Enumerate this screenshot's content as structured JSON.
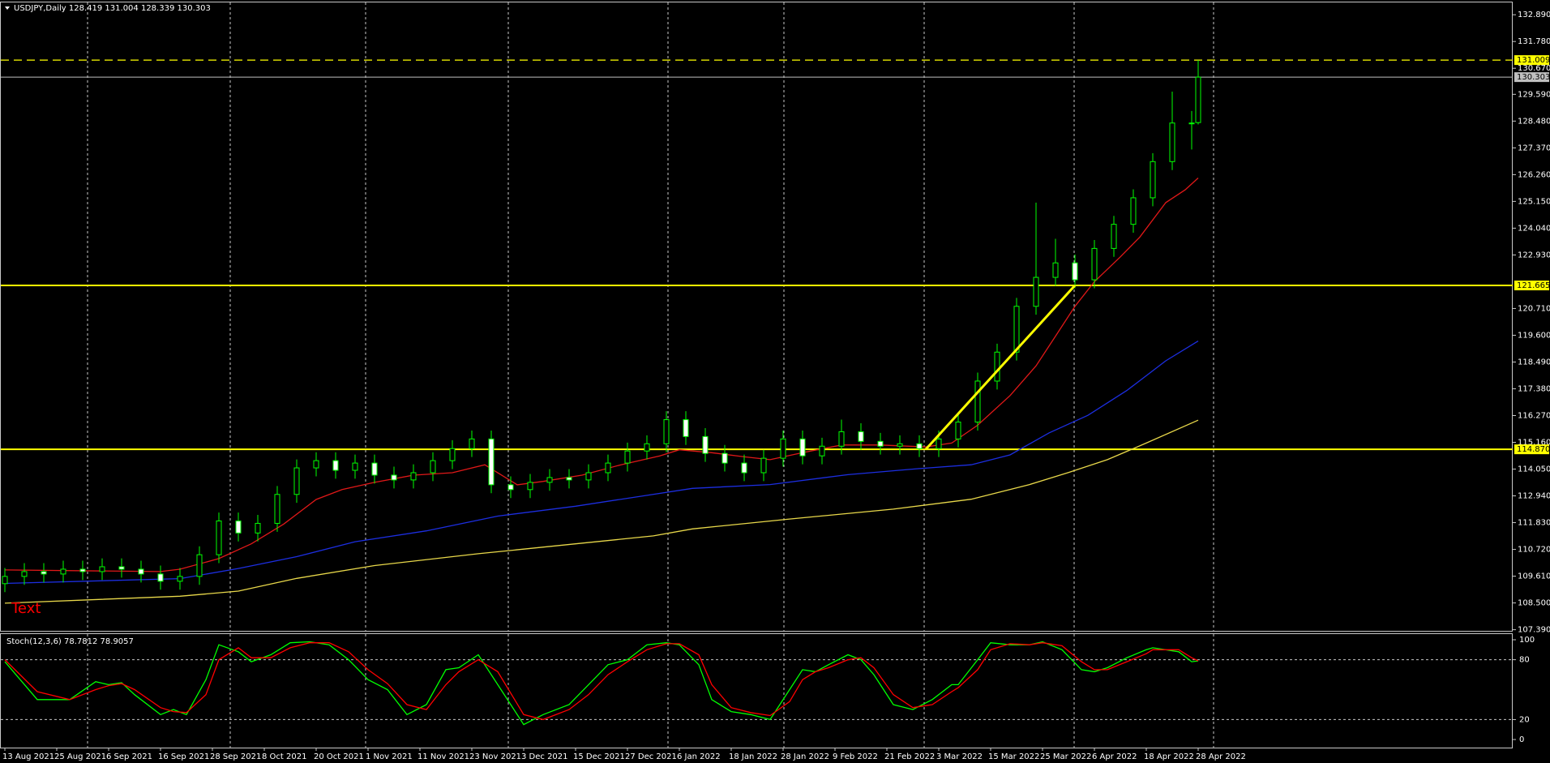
{
  "chart_data": [
    {
      "type": "candlestick",
      "title": "USDJPY,Daily  128.419 131.004 128.339 130.303",
      "annotation": "Text",
      "ylim": [
        107.31,
        133.4
      ],
      "yticks": [
        {
          "value": 132.89,
          "label": "132.890"
        },
        {
          "value": 131.78,
          "label": "131.780"
        },
        {
          "value": 130.67,
          "label": "130.670"
        },
        {
          "value": 129.59,
          "label": "129.590"
        },
        {
          "value": 128.48,
          "label": "128.480"
        },
        {
          "value": 127.37,
          "label": "127.370"
        },
        {
          "value": 126.26,
          "label": "126.260"
        },
        {
          "value": 125.15,
          "label": "125.150"
        },
        {
          "value": 124.04,
          "label": "124.040"
        },
        {
          "value": 122.93,
          "label": "122.930"
        },
        {
          "value": 120.71,
          "label": "120.710"
        },
        {
          "value": 119.6,
          "label": "119.600"
        },
        {
          "value": 118.49,
          "label": "118.490"
        },
        {
          "value": 117.38,
          "label": "117.380"
        },
        {
          "value": 116.27,
          "label": "116.270"
        },
        {
          "value": 115.16,
          "label": "115.160"
        },
        {
          "value": 114.05,
          "label": "114.050"
        },
        {
          "value": 112.94,
          "label": "112.940"
        },
        {
          "value": 111.83,
          "label": "111.830"
        },
        {
          "value": 110.72,
          "label": "110.720"
        },
        {
          "value": 109.61,
          "label": "109.610"
        },
        {
          "value": 108.5,
          "label": "108.500"
        },
        {
          "value": 107.39,
          "label": "107.390"
        }
      ],
      "x": [
        0,
        3,
        6,
        9,
        12,
        15,
        18,
        21,
        24,
        27,
        30,
        33,
        36,
        39,
        42,
        45,
        48,
        51,
        54,
        57,
        60,
        63,
        66,
        69,
        72,
        75,
        78,
        81,
        84,
        87,
        90,
        93,
        96,
        99,
        102,
        105,
        108,
        111,
        114,
        117,
        120,
        123,
        126,
        129,
        132,
        135,
        138,
        141,
        144,
        147,
        150,
        153,
        156,
        159,
        162,
        165,
        168,
        171,
        174,
        177,
        180,
        183,
        184
      ],
      "open": [
        109.3,
        109.6,
        109.8,
        109.7,
        109.9,
        109.8,
        110.0,
        109.9,
        109.7,
        109.4,
        109.6,
        110.5,
        111.9,
        111.4,
        111.8,
        113.0,
        114.1,
        114.4,
        114.0,
        114.3,
        113.8,
        113.6,
        113.9,
        114.4,
        114.9,
        115.3,
        113.4,
        113.2,
        113.5,
        113.7,
        113.6,
        113.9,
        114.3,
        114.8,
        115.1,
        116.1,
        115.4,
        114.7,
        114.3,
        113.9,
        114.5,
        115.3,
        114.6,
        115.0,
        115.6,
        115.2,
        115.0,
        115.1,
        114.9,
        115.3,
        116.0,
        117.7,
        118.9,
        120.8,
        122.0,
        122.6,
        121.9,
        123.2,
        124.2,
        125.3,
        126.8,
        128.4,
        128.419
      ],
      "high": [
        109.95,
        110.15,
        110.15,
        110.25,
        110.25,
        110.35,
        110.35,
        110.25,
        110.05,
        109.95,
        110.85,
        112.25,
        112.25,
        112.15,
        113.35,
        114.45,
        114.75,
        114.75,
        114.65,
        114.65,
        114.15,
        114.25,
        114.75,
        115.25,
        115.65,
        115.65,
        113.75,
        113.85,
        114.05,
        114.05,
        114.25,
        114.65,
        115.15,
        115.45,
        116.45,
        116.45,
        115.75,
        115.05,
        114.65,
        114.85,
        115.65,
        115.65,
        115.35,
        116.1,
        115.95,
        115.55,
        115.45,
        115.45,
        115.65,
        116.35,
        118.05,
        119.25,
        121.15,
        125.1,
        123.6,
        122.95,
        123.55,
        124.55,
        125.65,
        127.15,
        129.7,
        128.9,
        131.004
      ],
      "low": [
        108.95,
        109.25,
        109.35,
        109.35,
        109.45,
        109.45,
        109.55,
        109.35,
        109.05,
        109.05,
        109.25,
        110.15,
        111.05,
        111.05,
        111.45,
        112.65,
        113.75,
        113.65,
        113.65,
        113.45,
        113.25,
        113.25,
        113.55,
        114.05,
        114.55,
        113.05,
        112.85,
        112.85,
        113.15,
        113.25,
        113.25,
        113.55,
        113.95,
        114.45,
        114.75,
        115.05,
        114.35,
        113.95,
        113.55,
        113.55,
        114.15,
        114.25,
        114.25,
        114.65,
        114.85,
        114.65,
        114.65,
        114.55,
        114.55,
        114.95,
        115.65,
        117.35,
        118.55,
        120.45,
        121.65,
        121.55,
        121.55,
        122.85,
        123.85,
        124.95,
        126.45,
        127.3,
        128.339
      ],
      "close": [
        109.6,
        109.8,
        109.7,
        109.9,
        109.8,
        110.0,
        109.9,
        109.7,
        109.4,
        109.6,
        110.5,
        111.9,
        111.4,
        111.8,
        113.0,
        114.1,
        114.4,
        114.0,
        114.3,
        113.8,
        113.6,
        113.9,
        114.4,
        114.9,
        115.3,
        113.4,
        113.2,
        113.5,
        113.7,
        113.6,
        113.9,
        114.3,
        114.8,
        115.1,
        116.1,
        115.4,
        114.7,
        114.3,
        113.9,
        114.5,
        115.3,
        114.6,
        115.0,
        115.6,
        115.2,
        115.0,
        115.1,
        114.9,
        115.3,
        116.0,
        117.7,
        118.9,
        120.8,
        122.0,
        122.6,
        121.9,
        123.2,
        124.2,
        125.3,
        126.8,
        128.4,
        128.4,
        130.303
      ],
      "up_color": "#000000",
      "down_color": "#ffffff",
      "wick_color": "#00ff00",
      "series": [
        {
          "color": "#e01818",
          "x": [
            0,
            24,
            27,
            33,
            38,
            43,
            48,
            52,
            57,
            63,
            69,
            74,
            79,
            83,
            89,
            95,
            101,
            104,
            109,
            114,
            118,
            123,
            129,
            135,
            142,
            146,
            150,
            155,
            159,
            162,
            165,
            168,
            172,
            175,
            179,
            182,
            184
          ],
          "values": [
            109.87,
            109.8,
            109.9,
            110.34,
            110.95,
            111.77,
            112.79,
            113.2,
            113.5,
            113.8,
            113.9,
            114.23,
            113.4,
            113.54,
            113.8,
            114.23,
            114.6,
            114.85,
            114.73,
            114.56,
            114.44,
            114.73,
            115.05,
            115.05,
            114.97,
            115.13,
            115.87,
            117.1,
            118.33,
            119.56,
            120.8,
            121.82,
            122.85,
            123.67,
            125.1,
            125.63,
            126.12
          ]
        },
        {
          "color": "#1c2ee0",
          "x": [
            0,
            27,
            36,
            45,
            54,
            65,
            76,
            88,
            98,
            106,
            118,
            130,
            141,
            149,
            155,
            161,
            167,
            173,
            179,
            184
          ],
          "values": [
            109.31,
            109.51,
            109.93,
            110.42,
            111.04,
            111.49,
            112.1,
            112.51,
            112.92,
            113.25,
            113.41,
            113.82,
            114.07,
            114.23,
            114.64,
            115.55,
            116.28,
            117.31,
            118.54,
            119.36
          ]
        },
        {
          "color": "#e8d84a",
          "x": [
            0,
            27,
            36,
            45,
            57,
            73,
            88,
            100,
            106,
            121,
            137,
            149,
            158,
            164,
            170,
            176,
            184
          ],
          "values": [
            108.49,
            108.78,
            108.99,
            109.52,
            110.05,
            110.54,
            110.95,
            111.28,
            111.57,
            111.98,
            112.39,
            112.8,
            113.41,
            113.91,
            114.44,
            115.13,
            116.08
          ]
        }
      ],
      "trendline": {
        "color": "#ffff00",
        "x": [
          142,
          165
        ],
        "values": [
          114.87,
          121.665
        ]
      },
      "levels": [
        {
          "value": 131.009,
          "label": "131.009",
          "color": "#ffff00",
          "style": "dashed"
        },
        {
          "value": 130.303,
          "label": "130.303",
          "color": "#c0c0c0",
          "style": "solid"
        },
        {
          "value": 121.665,
          "label": "121.665",
          "color": "#ffff00",
          "style": "solid"
        },
        {
          "value": 114.87,
          "label": "114.870",
          "color": "#ffff00",
          "style": "solid"
        }
      ]
    },
    {
      "type": "line",
      "title": "Stoch(12,3,6) 78.7812 78.9057",
      "ylim": [
        -8.1,
        105.7
      ],
      "yticks": [
        100,
        80,
        20,
        0
      ],
      "levels": [
        80,
        20
      ],
      "xticks": [
        {
          "value": 0,
          "label": "13 Aug 2021"
        },
        {
          "value": 8,
          "label": "25 Aug 2021"
        },
        {
          "value": 16,
          "label": "6 Sep 2021"
        },
        {
          "value": 24,
          "label": "16 Sep 2021"
        },
        {
          "value": 32,
          "label": "28 Sep 2021"
        },
        {
          "value": 40,
          "label": "8 Oct 2021"
        },
        {
          "value": 48,
          "label": "20 Oct 2021"
        },
        {
          "value": 56,
          "label": "1 Nov 2021"
        },
        {
          "value": 64,
          "label": "11 Nov 2021"
        },
        {
          "value": 72,
          "label": "23 Nov 2021"
        },
        {
          "value": 80,
          "label": "3 Dec 2021"
        },
        {
          "value": 88,
          "label": "15 Dec 2021"
        },
        {
          "value": 96,
          "label": "27 Dec 2021"
        },
        {
          "value": 104,
          "label": "6 Jan 2022"
        },
        {
          "value": 112,
          "label": "18 Jan 2022"
        },
        {
          "value": 120,
          "label": "28 Jan 2022"
        },
        {
          "value": 128,
          "label": "9 Feb 2022"
        },
        {
          "value": 136,
          "label": "21 Feb 2022"
        },
        {
          "value": 144,
          "label": "3 Mar 2022"
        },
        {
          "value": 152,
          "label": "15 Mar 2022"
        },
        {
          "value": 160,
          "label": "25 Mar 2022"
        },
        {
          "value": 168,
          "label": "6 Apr 2022"
        },
        {
          "value": 176,
          "label": "18 Apr 2022"
        },
        {
          "value": 184,
          "label": "28 Apr 2022"
        }
      ],
      "series": [
        {
          "color": "#00ff00",
          "x": [
            0,
            5,
            10,
            14,
            16,
            18,
            20,
            24,
            26,
            28,
            31,
            33,
            36,
            38,
            41,
            44,
            47,
            50,
            53,
            56,
            59,
            62,
            65,
            68,
            70,
            73,
            76,
            80,
            83,
            87,
            90,
            93,
            96,
            99,
            102,
            104,
            107,
            109,
            112,
            115,
            118,
            121,
            123,
            125,
            127,
            130,
            132,
            134,
            137,
            140,
            143,
            146,
            147,
            150,
            152,
            155,
            158,
            160,
            163,
            166,
            168,
            170,
            173,
            176,
            177,
            181,
            183,
            184
          ],
          "values": [
            78,
            40,
            40,
            58,
            55,
            57,
            45,
            25,
            30,
            25,
            60,
            95,
            88,
            78,
            85,
            97,
            98,
            95,
            80,
            60,
            50,
            25,
            35,
            70,
            72,
            85,
            55,
            15,
            25,
            35,
            55,
            75,
            80,
            95,
            97,
            95,
            75,
            40,
            28,
            25,
            20,
            50,
            70,
            68,
            75,
            85,
            80,
            65,
            35,
            30,
            40,
            55,
            55,
            80,
            97,
            95,
            95,
            98,
            90,
            70,
            68,
            72,
            82,
            90,
            92,
            88,
            78,
            78.7812
          ]
        },
        {
          "color": "#ff0000",
          "x": [
            0,
            5,
            10,
            14,
            16,
            18,
            20,
            24,
            26,
            28,
            31,
            33,
            36,
            38,
            41,
            44,
            47,
            50,
            53,
            56,
            59,
            62,
            65,
            68,
            70,
            73,
            76,
            80,
            83,
            87,
            90,
            93,
            96,
            99,
            102,
            104,
            107,
            109,
            112,
            115,
            118,
            121,
            123,
            125,
            127,
            130,
            132,
            134,
            137,
            140,
            143,
            146,
            147,
            150,
            152,
            155,
            158,
            160,
            163,
            166,
            168,
            170,
            173,
            176,
            177,
            181,
            183,
            184
          ],
          "values": [
            80,
            48,
            40,
            50,
            54,
            56,
            50,
            32,
            28,
            27,
            45,
            80,
            92,
            82,
            82,
            92,
            97,
            97,
            88,
            70,
            56,
            35,
            30,
            55,
            68,
            80,
            68,
            25,
            20,
            30,
            45,
            65,
            78,
            90,
            96,
            96,
            85,
            55,
            32,
            27,
            24,
            38,
            60,
            68,
            72,
            80,
            82,
            72,
            45,
            32,
            35,
            48,
            52,
            70,
            90,
            96,
            95,
            97,
            94,
            78,
            70,
            70,
            78,
            86,
            90,
            90,
            82,
            78.9057
          ]
        }
      ]
    }
  ]
}
